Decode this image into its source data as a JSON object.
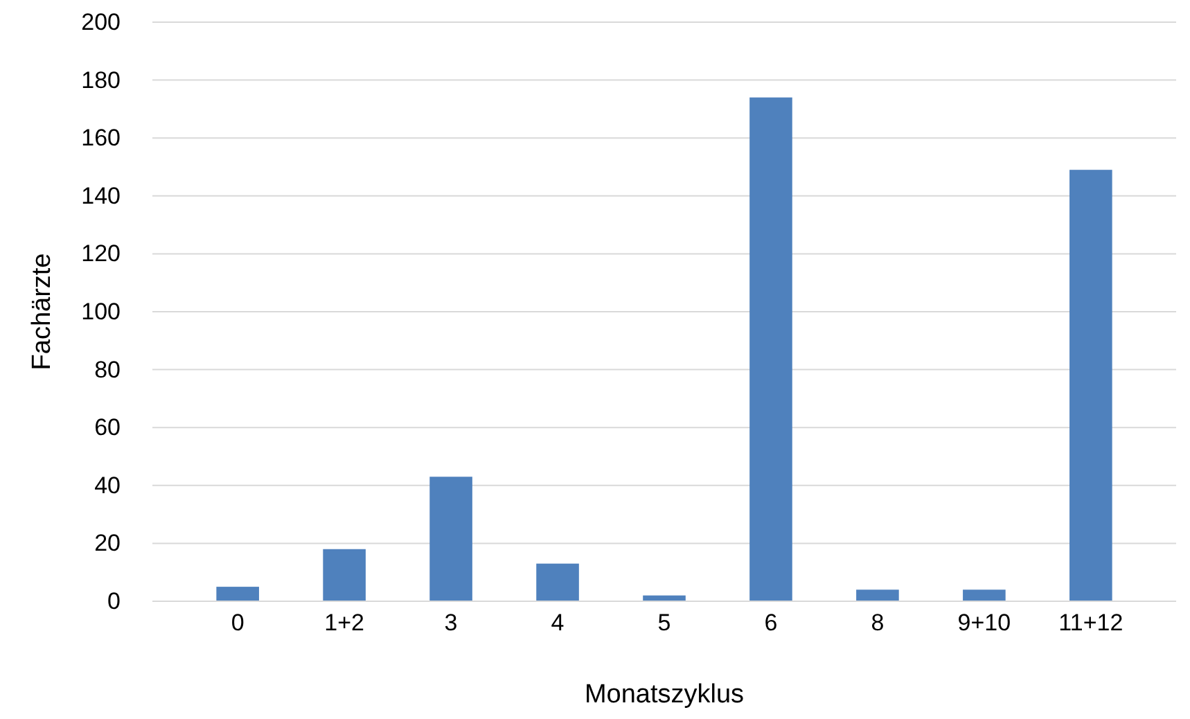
{
  "chart_data": {
    "type": "bar",
    "xlabel": "Monatszyklus",
    "ylabel": "Fachärzte",
    "categories": [
      "0",
      "1+2",
      "3",
      "4",
      "5",
      "6",
      "8",
      "9+10",
      "11+12"
    ],
    "values": [
      5,
      18,
      43,
      13,
      2,
      174,
      4,
      4,
      149
    ],
    "color": "#4f81bd",
    "ylim": [
      0,
      200
    ],
    "yticks": [
      0,
      20,
      40,
      60,
      80,
      100,
      120,
      140,
      160,
      180,
      200
    ],
    "grid": "y"
  }
}
